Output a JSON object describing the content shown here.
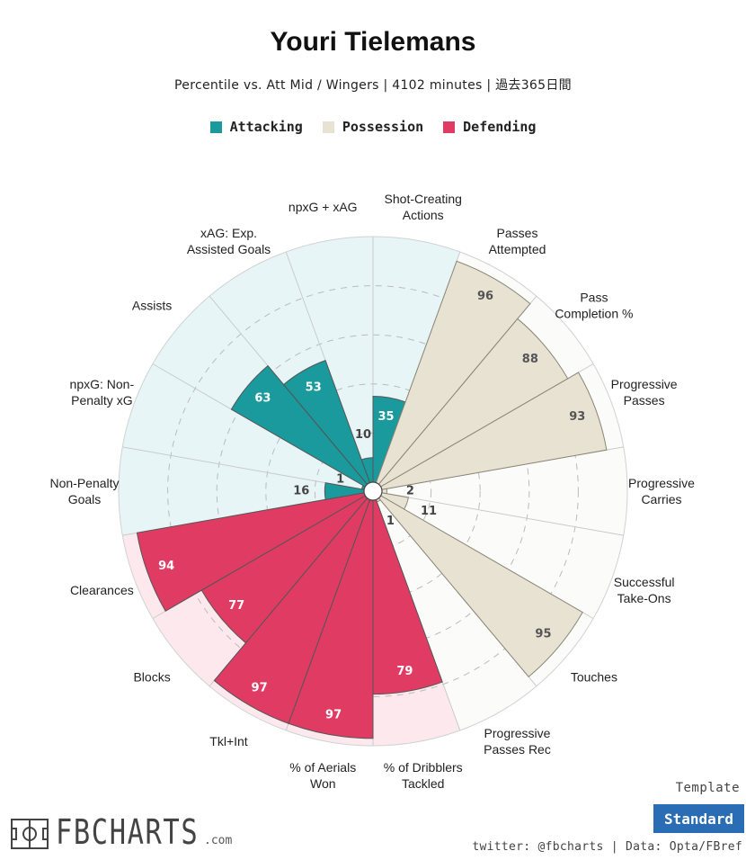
{
  "header": {
    "title": "Youri Tielemans",
    "subtitle": "Percentile vs. Att Mid / Wingers | 4102 minutes | 過去365日間"
  },
  "colors": {
    "Attacking": "#1a9a9c",
    "Possession": "#e7e2d1",
    "Defending": "#e03c63",
    "Attacking_bg": "#e8f5f6",
    "Possession_bg": "#fbfbf9",
    "Defending_bg": "#fde8ee"
  },
  "footer": {
    "template_label": "Template",
    "template_value": "Standard",
    "credit": "twitter: @fbcharts | Data: Opta/FBref",
    "logo_text": "FBCHARTS",
    "logo_suffix": ".com"
  },
  "chart_data": {
    "type": "polar-bar",
    "title": "Youri Tielemans",
    "rlim": [
      0,
      100
    ],
    "grid": true,
    "legend": {
      "placement": "top",
      "entries": [
        "Attacking",
        "Possession",
        "Defending"
      ]
    },
    "categories": [
      "Shot-Creating\nActions",
      "Passes\nAttempted",
      "Pass\nCompletion %",
      "Progressive\nPasses",
      "Progressive\nCarries",
      "Successful\nTake-Ons",
      "Touches",
      "Progressive\nPasses Rec",
      "% of Dribblers\nTackled",
      "% of Aerials\nWon",
      "Tkl+Int",
      "Blocks",
      "Clearances",
      "Non-Penalty\nGoals",
      "npxG: Non-\nPenalty xG",
      "Assists",
      "xAG: Exp.\nAssisted Goals",
      "npxG + xAG"
    ],
    "values": [
      35,
      96,
      88,
      93,
      2,
      11,
      95,
      1,
      79,
      97,
      97,
      77,
      94,
      16,
      1,
      63,
      53,
      10
    ],
    "groups": [
      "Attacking",
      "Possession",
      "Possession",
      "Possession",
      "Possession",
      "Possession",
      "Possession",
      "Possession",
      "Defending",
      "Defending",
      "Defending",
      "Defending",
      "Defending",
      "Attacking",
      "Attacking",
      "Attacking",
      "Attacking",
      "Attacking"
    ]
  }
}
